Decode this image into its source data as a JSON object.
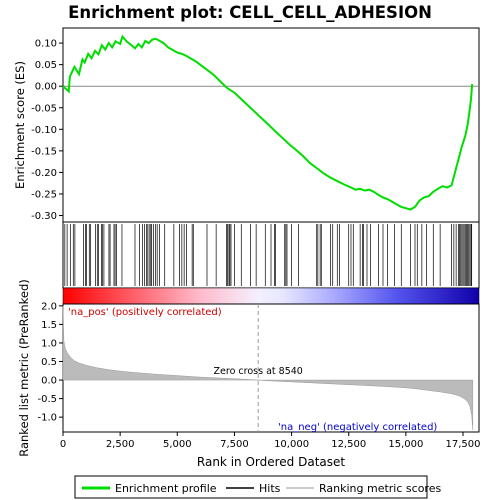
{
  "chart_data": {
    "type": "line",
    "title": "Enrichment plot: CELL_CELL_ADHESION",
    "xlabel": "Rank in Ordered Dataset",
    "es_panel": {
      "ylabel": "Enrichment score (ES)",
      "yticks": [
        "0.10",
        "0.05",
        "0.00",
        "-0.05",
        "-0.10",
        "-0.15",
        "-0.20",
        "-0.25",
        "-0.30"
      ],
      "ylim": [
        -0.315,
        0.135
      ],
      "series": [
        {
          "name": "Enrichment profile",
          "color": "#00dd00",
          "x": [
            0,
            250,
            300,
            500,
            700,
            850,
            950,
            1100,
            1250,
            1400,
            1550,
            1700,
            1850,
            2000,
            2150,
            2300,
            2500,
            2600,
            2800,
            3000,
            3150,
            3300,
            3450,
            3600,
            3750,
            3900,
            4050,
            4200,
            4400,
            4600,
            4800,
            5000,
            5200,
            5400,
            5600,
            5800,
            6000,
            6300,
            6600,
            6900,
            7200,
            7500,
            7800,
            8100,
            8400,
            8700,
            9000,
            9300,
            9600,
            9900,
            10200,
            10500,
            10800,
            11100,
            11400,
            11700,
            12000,
            12300,
            12600,
            12800,
            13000,
            13200,
            13400,
            13600,
            13800,
            14000,
            14200,
            14400,
            14600,
            14800,
            15000,
            15200,
            15400,
            15600,
            15800,
            16000,
            16200,
            16400,
            16600,
            16800,
            17000,
            17150,
            17300,
            17450,
            17600,
            17700,
            17780,
            17850,
            17900
          ],
          "y": [
            0.0,
            -0.012,
            0.022,
            0.045,
            0.028,
            0.062,
            0.055,
            0.075,
            0.065,
            0.082,
            0.074,
            0.095,
            0.085,
            0.1,
            0.09,
            0.104,
            0.098,
            0.115,
            0.103,
            0.095,
            0.088,
            0.098,
            0.09,
            0.105,
            0.1,
            0.108,
            0.11,
            0.106,
            0.1,
            0.09,
            0.084,
            0.078,
            0.075,
            0.07,
            0.064,
            0.058,
            0.05,
            0.038,
            0.026,
            0.01,
            -0.005,
            -0.015,
            -0.03,
            -0.045,
            -0.06,
            -0.075,
            -0.09,
            -0.105,
            -0.12,
            -0.135,
            -0.148,
            -0.162,
            -0.178,
            -0.19,
            -0.202,
            -0.212,
            -0.22,
            -0.228,
            -0.235,
            -0.24,
            -0.238,
            -0.242,
            -0.24,
            -0.245,
            -0.252,
            -0.258,
            -0.262,
            -0.268,
            -0.274,
            -0.28,
            -0.283,
            -0.286,
            -0.28,
            -0.265,
            -0.258,
            -0.255,
            -0.245,
            -0.238,
            -0.232,
            -0.235,
            -0.23,
            -0.2,
            -0.17,
            -0.14,
            -0.115,
            -0.09,
            -0.06,
            -0.03,
            0.005
          ]
        }
      ]
    },
    "hits": {
      "name": "Hits",
      "positions": [
        80,
        180,
        320,
        450,
        520,
        900,
        980,
        1030,
        1150,
        1210,
        1420,
        1500,
        1560,
        1680,
        1720,
        1790,
        2010,
        2060,
        2230,
        2280,
        2340,
        2580,
        3150,
        3350,
        3480,
        3560,
        3650,
        3710,
        3770,
        3840,
        3880,
        3960,
        4050,
        4120,
        4220,
        4450,
        4850,
        5100,
        5200,
        5300,
        5400,
        5650,
        5700,
        6300,
        6700,
        7150,
        7200,
        7260,
        7300,
        7350,
        7500,
        7800,
        8200,
        8450,
        8850,
        9100,
        9250,
        9300,
        9700,
        9750,
        9800,
        10000,
        10300,
        11100,
        11150,
        11250,
        11300,
        11700,
        11800,
        12000,
        12100,
        12500,
        12600,
        12700,
        13000,
        13100,
        13150,
        13300,
        13450,
        13800,
        14000,
        14200,
        14500,
        14800,
        15200,
        15400,
        15500,
        15700,
        15900,
        16200,
        16500,
        17000,
        17100,
        17200,
        17300,
        17350,
        17400,
        17450,
        17500,
        17550,
        17600,
        17650,
        17700,
        17750,
        17800,
        17850,
        17880
      ]
    },
    "ranking_panel": {
      "ylabel": "Ranked list metric (PreRanked)",
      "yticks": [
        "2.0",
        "1.5",
        "1.0",
        "0.5",
        "0.0",
        "-0.5",
        "-1.0"
      ],
      "ylim": [
        -1.4,
        2.05
      ],
      "name": "Ranking metric scores",
      "x": [
        0,
        40,
        100,
        200,
        350,
        500,
        700,
        1000,
        1500,
        2000,
        2500,
        3000,
        4000,
        5000,
        6000,
        7000,
        8000,
        8540,
        9000,
        10000,
        11000,
        12000,
        13000,
        14000,
        15000,
        15500,
        16000,
        16500,
        17000,
        17300,
        17500,
        17700,
        17800,
        17880,
        17930
      ],
      "y": [
        2.0,
        1.05,
        0.85,
        0.72,
        0.6,
        0.52,
        0.46,
        0.4,
        0.33,
        0.28,
        0.24,
        0.21,
        0.16,
        0.12,
        0.08,
        0.05,
        0.02,
        0.0,
        -0.02,
        -0.05,
        -0.08,
        -0.11,
        -0.14,
        -0.17,
        -0.21,
        -0.24,
        -0.28,
        -0.32,
        -0.37,
        -0.42,
        -0.48,
        -0.58,
        -0.7,
        -0.95,
        -1.35
      ]
    },
    "zero_cross": {
      "label": "Zero cross at 8540",
      "x": 8540
    },
    "annotations": {
      "pos": "'na_pos' (positively correlated)",
      "neg": "'na_neg' (negatively correlated)"
    },
    "xaxis": {
      "ticks": [
        "0",
        "2,500",
        "5,000",
        "7,500",
        "10,000",
        "12,500",
        "15,000",
        "17,500"
      ],
      "xlim": [
        0,
        18200
      ],
      "max_rank": 17930
    },
    "legend": {
      "placement": "bottom",
      "items": [
        "Enrichment profile",
        "Hits",
        "Ranking metric scores"
      ],
      "colors": [
        "#00dd00",
        "#000000",
        "#bbbbbb"
      ]
    },
    "colors": {
      "profile": "#00dd00",
      "zero_line": "#888888",
      "metric_fill": "#bbbbbb",
      "pos_label": "#cc0000",
      "neg_label": "#0000cc"
    }
  }
}
